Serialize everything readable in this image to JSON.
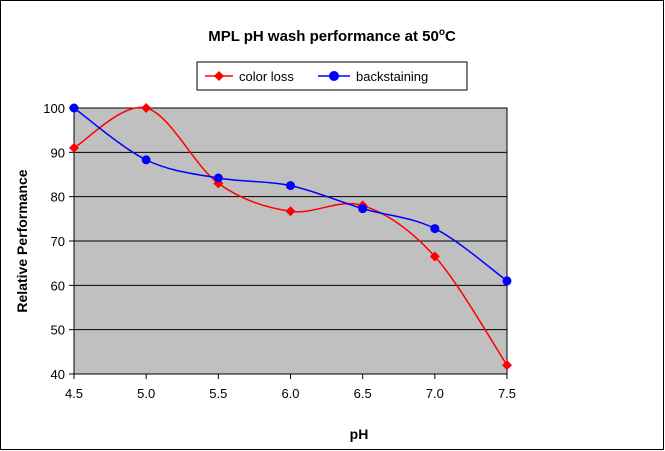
{
  "chart_data": {
    "type": "line",
    "title": "MPL pH wash performance at 50",
    "title_superscript": "o",
    "title_suffix": "C",
    "xlabel": "pH",
    "ylabel": "Relative Performance",
    "x": [
      4.5,
      5.0,
      5.5,
      6.0,
      6.5,
      7.0,
      7.5
    ],
    "x_tick_labels": [
      "4.5",
      "5.0",
      "5.5",
      "6.0",
      "6.5",
      "7.0",
      "7.5"
    ],
    "y_ticks": [
      40,
      50,
      60,
      70,
      80,
      90,
      100
    ],
    "xlim": [
      4.5,
      7.5
    ],
    "ylim": [
      40,
      100
    ],
    "grid": "horizontal",
    "legend_position": "top",
    "plot_background": "#c0c0c0",
    "series": [
      {
        "name": "color loss",
        "color": "#ff0000",
        "marker": "diamond",
        "values": [
          91,
          100,
          83,
          76.7,
          78,
          66.5,
          42
        ]
      },
      {
        "name": "backstaining",
        "color": "#0000ff",
        "marker": "circle",
        "values": [
          100,
          88.3,
          84.2,
          82.5,
          77.3,
          72.8,
          61
        ]
      }
    ]
  }
}
